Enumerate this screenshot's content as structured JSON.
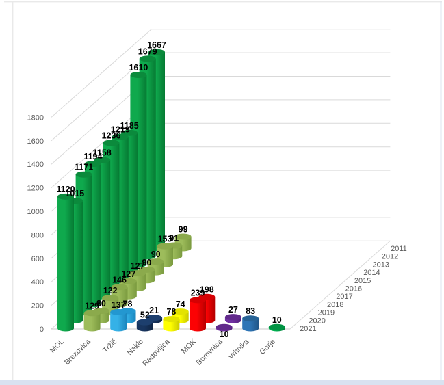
{
  "chart_data": {
    "type": "bar",
    "subtype": "3d-cylinder",
    "title": "",
    "legend": "none",
    "grid": true,
    "categories": [
      "MOL",
      "Brezovica",
      "Tržič",
      "Naklo",
      "Radovljica",
      "MOK",
      "Borovnica",
      "Vrhnika",
      "Gorje"
    ],
    "depth_years_front_to_back": [
      "2021",
      "2020",
      "2019",
      "2018",
      "2017",
      "2016",
      "2015",
      "2014",
      "2013",
      "2012",
      "2011"
    ],
    "value_axis": {
      "min": 0,
      "max": 1800,
      "step": 200,
      "tick_labels": [
        "0",
        "200",
        "400",
        "600",
        "800",
        "1000",
        "1200",
        "1400",
        "1600",
        "1800"
      ]
    },
    "series": [
      {
        "name": "MOL",
        "color": "#0FA94D",
        "color_dark": "#067A33",
        "color_top": "#0B8A3C",
        "values": [
          1120,
          1015,
          1171,
          1194,
          1158,
          1236,
          1219,
          1185,
          1610,
          1679,
          1667
        ]
      },
      {
        "name": "Brezovica",
        "color": "#9DBC5B",
        "color_dark": "#7A9A3F",
        "color_top": "#8BAA4C",
        "values": [
          129,
          80,
          122,
          146,
          127,
          127,
          90,
          90,
          153,
          91,
          99
        ]
      },
      {
        "name": "Tržič",
        "color": "#35B1E7",
        "color_dark": "#1A85BD",
        "color_top": "#2397D0",
        "values": [
          137,
          78,
          null,
          null,
          null,
          null,
          null,
          null,
          null,
          null,
          null
        ]
      },
      {
        "name": "Naklo",
        "color": "#18355F",
        "color_dark": "#0F2443",
        "color_top": "#1D3F6E",
        "values": [
          52,
          21,
          null,
          null,
          null,
          null,
          null,
          null,
          null,
          null,
          null
        ]
      },
      {
        "name": "Radovljica",
        "color": "#FFFF00",
        "color_dark": "#C9C900",
        "color_top": "#E3E300",
        "values": [
          78,
          74,
          null,
          null,
          null,
          null,
          null,
          null,
          null,
          null,
          null
        ]
      },
      {
        "name": "MOK",
        "color": "#FC0204",
        "color_dark": "#B50000",
        "color_top": "#D60003",
        "values": [
          239,
          198,
          null,
          null,
          null,
          null,
          null,
          null,
          null,
          null,
          null
        ]
      },
      {
        "name": "Borovnica",
        "color": "#7030A0",
        "color_dark": "#53207A",
        "color_top": "#612A8B",
        "values": [
          10,
          27,
          null,
          null,
          null,
          null,
          null,
          null,
          null,
          null,
          null
        ],
        "label_placement": [
          "below",
          "above"
        ]
      },
      {
        "name": "Vrhnika",
        "color": "#2E75B6",
        "color_dark": "#1F5486",
        "color_top": "#276396",
        "values": [
          83,
          null,
          null,
          null,
          null,
          null,
          null,
          null,
          null,
          null,
          null
        ]
      },
      {
        "name": "Gorje",
        "color": "#00B050",
        "color_dark": "#007737",
        "color_top": "#009343",
        "values": [
          10,
          null,
          null,
          null,
          null,
          null,
          null,
          null,
          null,
          null,
          null
        ]
      }
    ],
    "colors": {
      "axis_text": "#595959",
      "data_label_text": "#000000",
      "gridline": "#D9D9D9",
      "front_axis_line": "#C9C9C9",
      "frame_border": "#E9E9E9",
      "frame_border_right": "#DEE4EF",
      "frame_bottom_band": "#D9E2F0",
      "background": "#FFFFFF"
    }
  }
}
